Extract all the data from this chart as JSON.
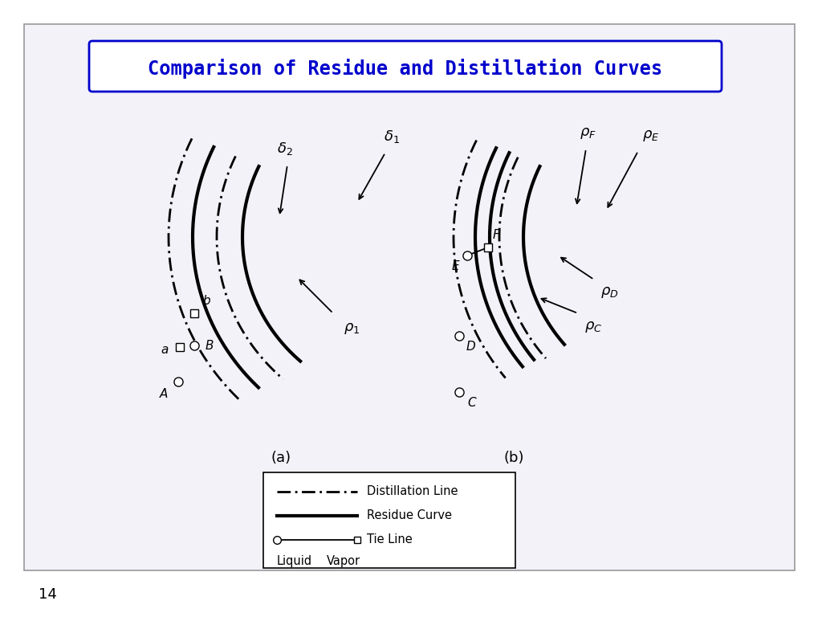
{
  "title": "Comparison of Residue and Distillation Curves",
  "title_color": "#0000CC",
  "figure_background": "#ffffff",
  "slide_background": "#f2f2f8",
  "page_number": "14",
  "label_a": "(a)",
  "label_b": "(b)"
}
